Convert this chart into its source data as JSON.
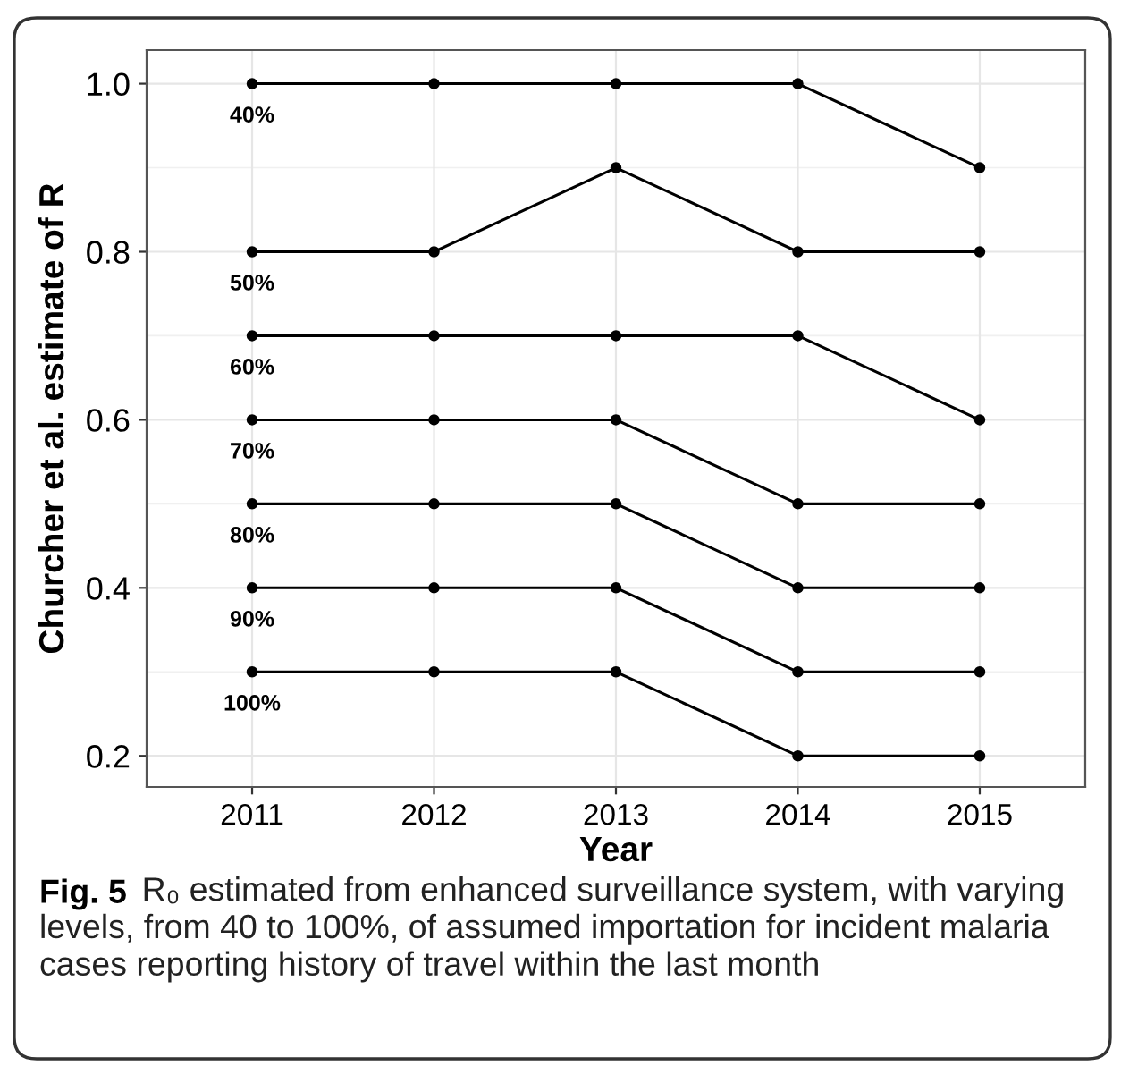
{
  "chart_data": {
    "type": "line",
    "xlabel": "Year",
    "ylabel": "Churcher et al. estimate of R",
    "x": [
      2011,
      2012,
      2013,
      2014,
      2015
    ],
    "series": [
      {
        "name": "40%",
        "color": "#000000",
        "values": [
          1.0,
          1.0,
          1.0,
          1.0,
          0.9
        ]
      },
      {
        "name": "50%",
        "color": "#000000",
        "values": [
          0.8,
          0.8,
          0.9,
          0.8,
          0.8
        ]
      },
      {
        "name": "60%",
        "color": "#000000",
        "values": [
          0.7,
          0.7,
          0.7,
          0.7,
          0.6
        ]
      },
      {
        "name": "70%",
        "color": "#000000",
        "values": [
          0.6,
          0.6,
          0.6,
          0.5,
          0.5
        ]
      },
      {
        "name": "80%",
        "color": "#000000",
        "values": [
          0.5,
          0.5,
          0.5,
          0.4,
          0.4
        ]
      },
      {
        "name": "90%",
        "color": "#000000",
        "values": [
          0.4,
          0.4,
          0.4,
          0.3,
          0.3
        ]
      },
      {
        "name": "100%",
        "color": "#000000",
        "values": [
          0.3,
          0.3,
          0.3,
          0.2,
          0.2
        ]
      }
    ],
    "xlim": [
      2010.42,
      2015.58
    ],
    "xticks": [
      2011,
      2012,
      2013,
      2014,
      2015
    ],
    "ylim": [
      0.163,
      1.04
    ],
    "yticks": [
      {
        "value": 0.2,
        "label": "0.2"
      },
      {
        "value": 0.4,
        "label": "0.4"
      },
      {
        "value": 0.6,
        "label": "0.6"
      },
      {
        "value": 0.8,
        "label": "0.8"
      },
      {
        "value": 1.0,
        "label": "1.0"
      }
    ],
    "grid": true,
    "legend": false,
    "marker": "circle",
    "line_style": "solid",
    "annotations": [
      "Fig. 5",
      "R₀ estimated from enhanced surveillance system, with varying levels, from 40 to 100%, of assumed importation for incident malaria cases reporting history of travel within the last month"
    ]
  }
}
